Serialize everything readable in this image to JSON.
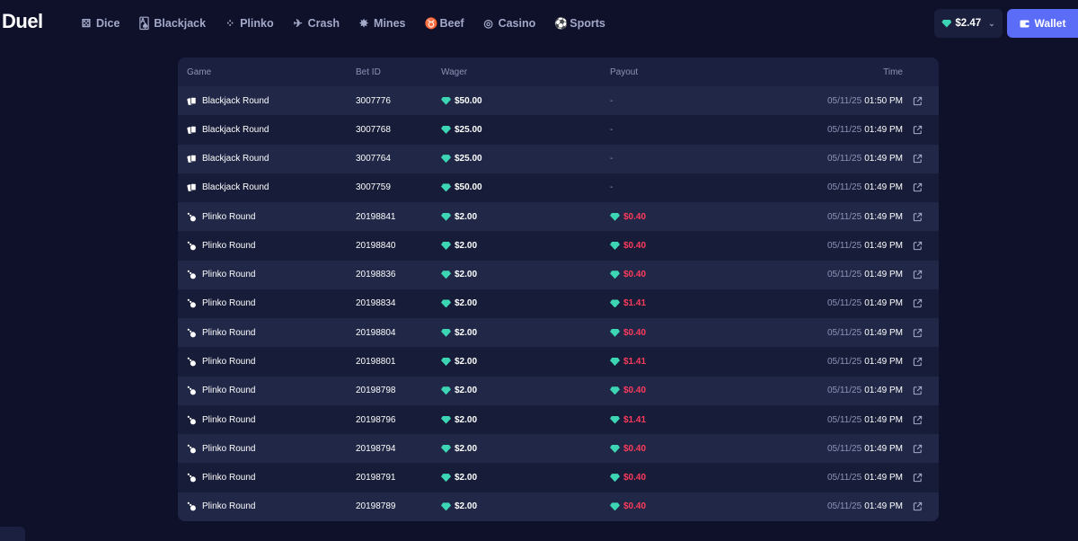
{
  "brand": "Duel",
  "nav": [
    {
      "label": "Dice",
      "icon": "dice-icon"
    },
    {
      "label": "Blackjack",
      "icon": "cards-icon"
    },
    {
      "label": "Plinko",
      "icon": "plinko-icon"
    },
    {
      "label": "Crash",
      "icon": "crash-icon"
    },
    {
      "label": "Mines",
      "icon": "mines-icon"
    },
    {
      "label": "Beef",
      "icon": "beef-icon"
    },
    {
      "label": "Casino",
      "icon": "casino-icon"
    },
    {
      "label": "Sports",
      "icon": "sports-icon"
    }
  ],
  "balance": {
    "amount": "$2.47"
  },
  "wallet": {
    "label": "Wallet"
  },
  "table": {
    "headers": {
      "game": "Game",
      "bet_id": "Bet ID",
      "wager": "Wager",
      "payout": "Payout",
      "time": "Time"
    },
    "rows": [
      {
        "game": "Blackjack Round",
        "type": "blackjack",
        "bet_id": "3007776",
        "wager": "$50.00",
        "payout": "-",
        "date": "05/11/25",
        "hour": "01:50 PM"
      },
      {
        "game": "Blackjack Round",
        "type": "blackjack",
        "bet_id": "3007768",
        "wager": "$25.00",
        "payout": "-",
        "date": "05/11/25",
        "hour": "01:49 PM"
      },
      {
        "game": "Blackjack Round",
        "type": "blackjack",
        "bet_id": "3007764",
        "wager": "$25.00",
        "payout": "-",
        "date": "05/11/25",
        "hour": "01:49 PM"
      },
      {
        "game": "Blackjack Round",
        "type": "blackjack",
        "bet_id": "3007759",
        "wager": "$50.00",
        "payout": "-",
        "date": "05/11/25",
        "hour": "01:49 PM"
      },
      {
        "game": "Plinko Round",
        "type": "plinko",
        "bet_id": "20198841",
        "wager": "$2.00",
        "payout": "$0.40",
        "date": "05/11/25",
        "hour": "01:49 PM"
      },
      {
        "game": "Plinko Round",
        "type": "plinko",
        "bet_id": "20198840",
        "wager": "$2.00",
        "payout": "$0.40",
        "date": "05/11/25",
        "hour": "01:49 PM"
      },
      {
        "game": "Plinko Round",
        "type": "plinko",
        "bet_id": "20198836",
        "wager": "$2.00",
        "payout": "$0.40",
        "date": "05/11/25",
        "hour": "01:49 PM"
      },
      {
        "game": "Plinko Round",
        "type": "plinko",
        "bet_id": "20198834",
        "wager": "$2.00",
        "payout": "$1.41",
        "date": "05/11/25",
        "hour": "01:49 PM"
      },
      {
        "game": "Plinko Round",
        "type": "plinko",
        "bet_id": "20198804",
        "wager": "$2.00",
        "payout": "$0.40",
        "date": "05/11/25",
        "hour": "01:49 PM"
      },
      {
        "game": "Plinko Round",
        "type": "plinko",
        "bet_id": "20198801",
        "wager": "$2.00",
        "payout": "$1.41",
        "date": "05/11/25",
        "hour": "01:49 PM"
      },
      {
        "game": "Plinko Round",
        "type": "plinko",
        "bet_id": "20198798",
        "wager": "$2.00",
        "payout": "$0.40",
        "date": "05/11/25",
        "hour": "01:49 PM"
      },
      {
        "game": "Plinko Round",
        "type": "plinko",
        "bet_id": "20198796",
        "wager": "$2.00",
        "payout": "$1.41",
        "date": "05/11/25",
        "hour": "01:49 PM"
      },
      {
        "game": "Plinko Round",
        "type": "plinko",
        "bet_id": "20198794",
        "wager": "$2.00",
        "payout": "$0.40",
        "date": "05/11/25",
        "hour": "01:49 PM"
      },
      {
        "game": "Plinko Round",
        "type": "plinko",
        "bet_id": "20198791",
        "wager": "$2.00",
        "payout": "$0.40",
        "date": "05/11/25",
        "hour": "01:49 PM"
      },
      {
        "game": "Plinko Round",
        "type": "plinko",
        "bet_id": "20198789",
        "wager": "$2.00",
        "payout": "$0.40",
        "date": "05/11/25",
        "hour": "01:49 PM"
      }
    ]
  },
  "colors": {
    "background": "#0e1129",
    "accent": "#5b6cf7",
    "loss": "#ff3b5c",
    "gem": "#3dd6b5"
  }
}
